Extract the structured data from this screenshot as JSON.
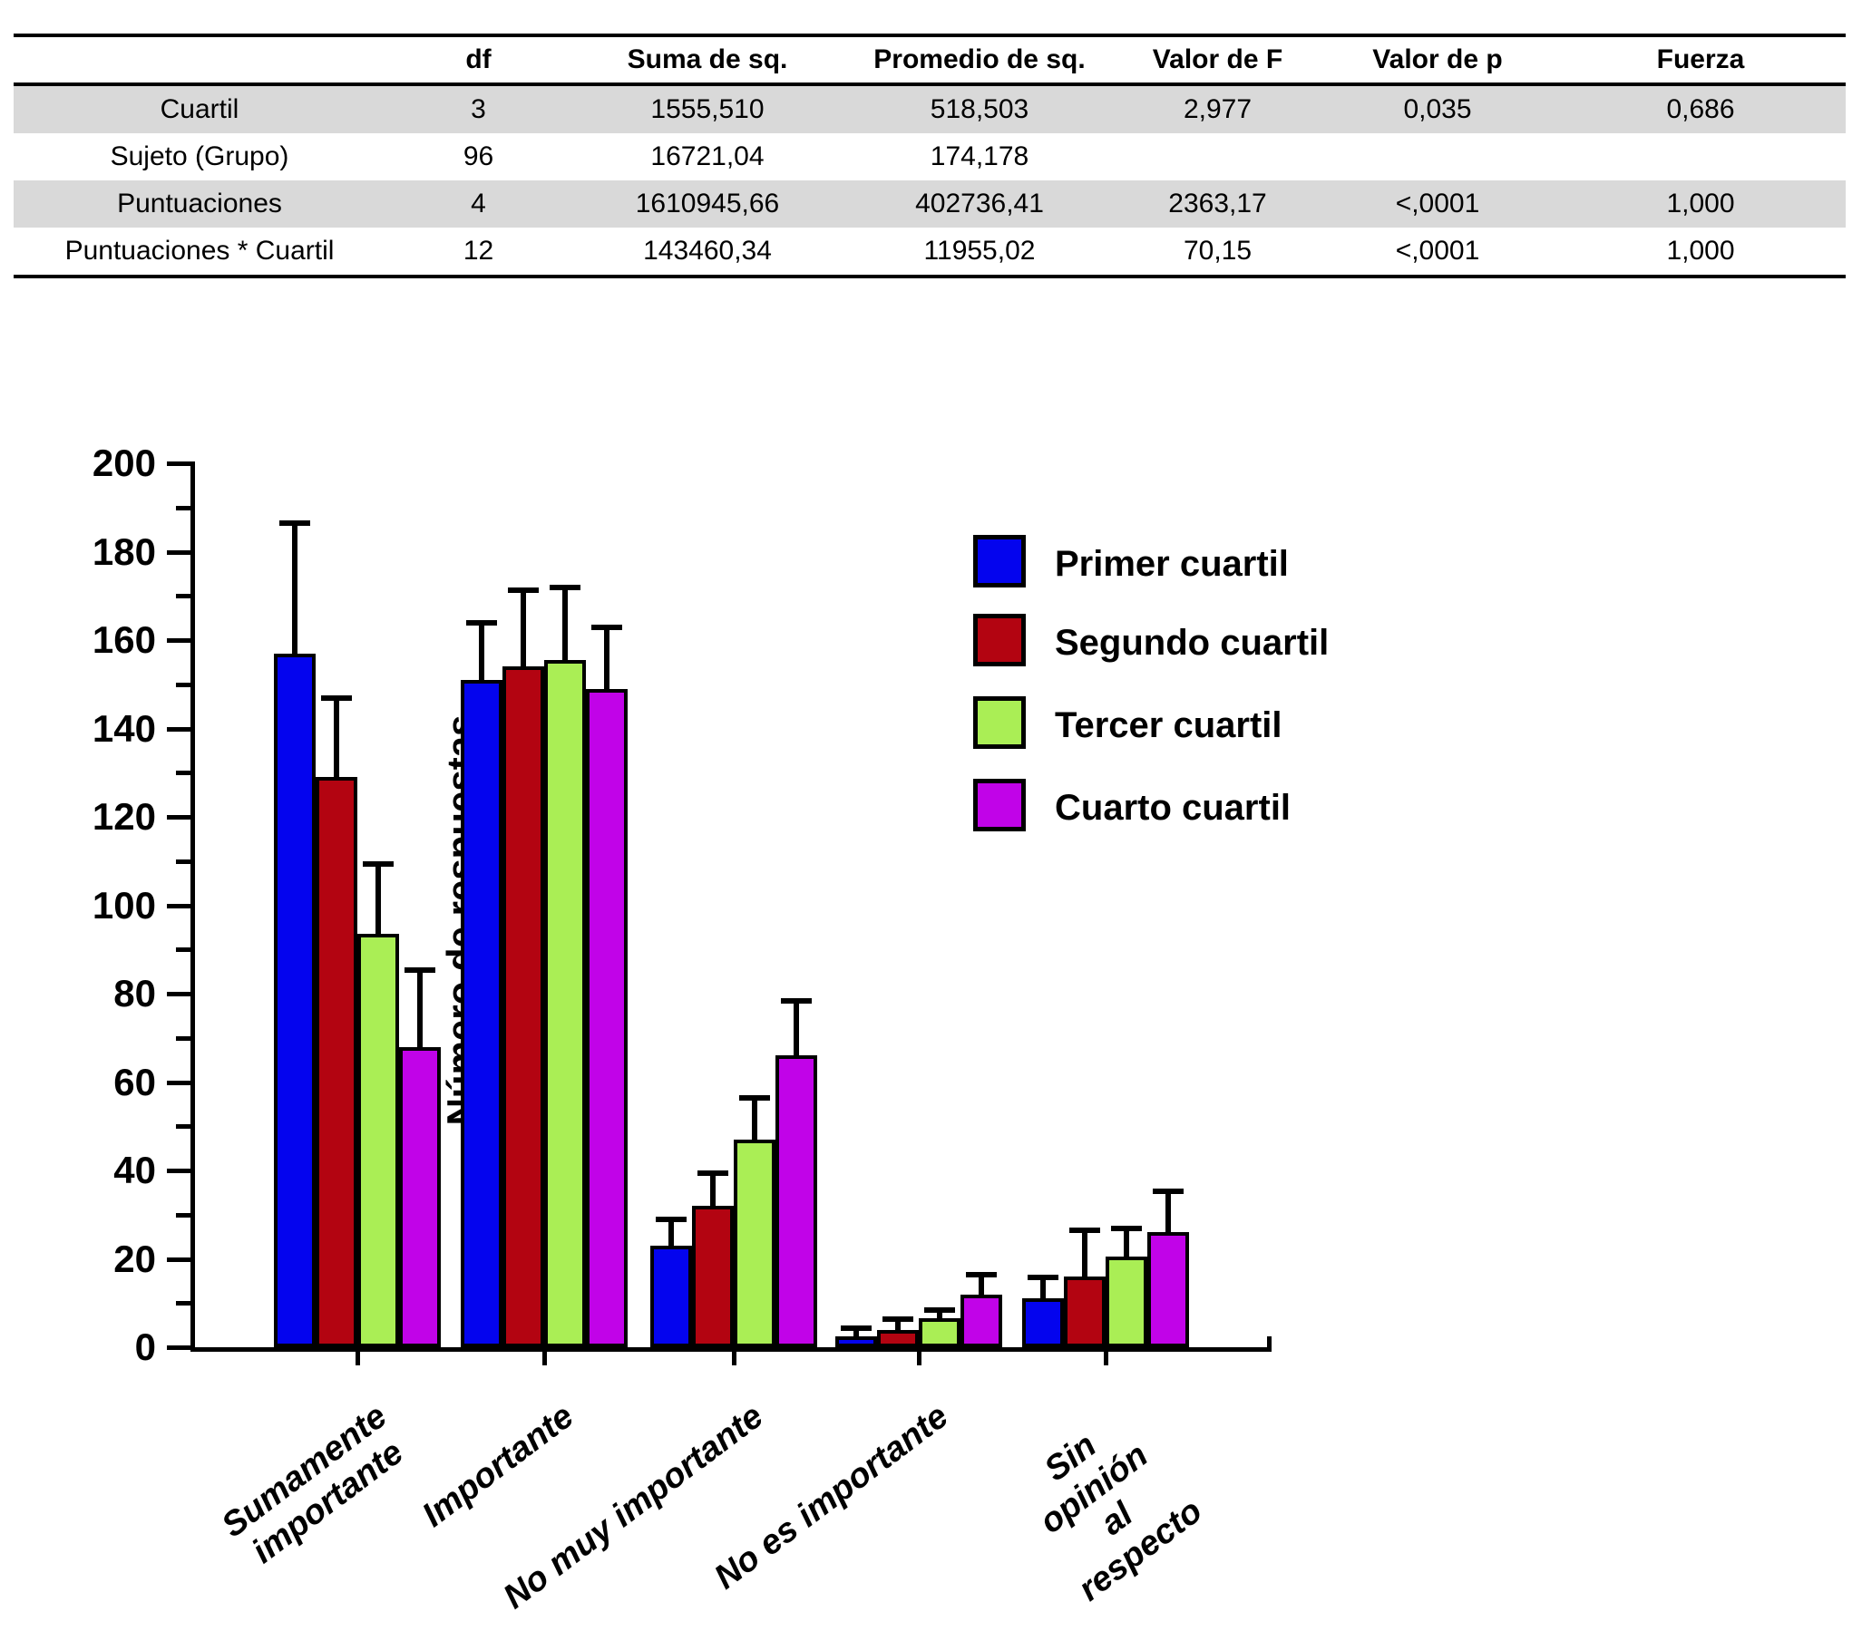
{
  "table": {
    "columns": [
      "",
      "df",
      "Suma de sq.",
      "Promedio de sq.",
      "Valor de F",
      "Valor de p",
      "Fuerza"
    ],
    "rows": [
      {
        "label": "Cuartil",
        "values": [
          "3",
          "1555,510",
          "518,503",
          "2,977",
          "0,035",
          "0,686"
        ],
        "shaded": true
      },
      {
        "label": "Sujeto (Grupo)",
        "values": [
          "96",
          "16721,04",
          "174,178",
          "",
          "",
          ""
        ],
        "shaded": false
      },
      {
        "label": "Puntuaciones",
        "values": [
          "4",
          "1610945,66",
          "402736,41",
          "2363,17",
          "<,0001",
          "1,000"
        ],
        "shaded": true
      },
      {
        "label": "Puntuaciones * Cuartil",
        "values": [
          "12",
          "143460,34",
          "11955,02",
          "70,15",
          "<,0001",
          "1,000"
        ],
        "shaded": false
      }
    ],
    "shade_color": "#d9d9d9"
  },
  "chart_data": {
    "type": "bar",
    "title": "",
    "xlabel": "",
    "ylabel": "Número de respuestas",
    "ylim": [
      0,
      200
    ],
    "ytick_major": 20,
    "ytick_minor": 10,
    "grid": false,
    "legend_position": "upper-right-inside",
    "error_bars": "upper-only",
    "categories": [
      "Sumamente\nimportante",
      "Importante",
      "No muy importante",
      "No es importante",
      "Sin opinión al respecto"
    ],
    "series": [
      {
        "name": "Primer cuartil",
        "color": "#0404ee",
        "values": [
          157,
          151,
          23,
          2.5,
          11
        ],
        "error_up": [
          30,
          13.5,
          6.5,
          2.5,
          5.5
        ]
      },
      {
        "name": "Segundo cuartil",
        "color": "#b30411",
        "values": [
          129,
          154,
          32,
          4,
          16
        ],
        "error_up": [
          18.5,
          18,
          8,
          3,
          11
        ]
      },
      {
        "name": "Tercer cuartil",
        "color": "#aaee55",
        "values": [
          93.5,
          155.5,
          47,
          6.5,
          20.5
        ],
        "error_up": [
          16.5,
          17,
          10,
          2.5,
          7
        ]
      },
      {
        "name": "Cuarto cuartil",
        "color": "#c103e8",
        "values": [
          68,
          149,
          66,
          12,
          26
        ],
        "error_up": [
          18,
          14.5,
          13,
          5,
          10
        ]
      }
    ]
  }
}
